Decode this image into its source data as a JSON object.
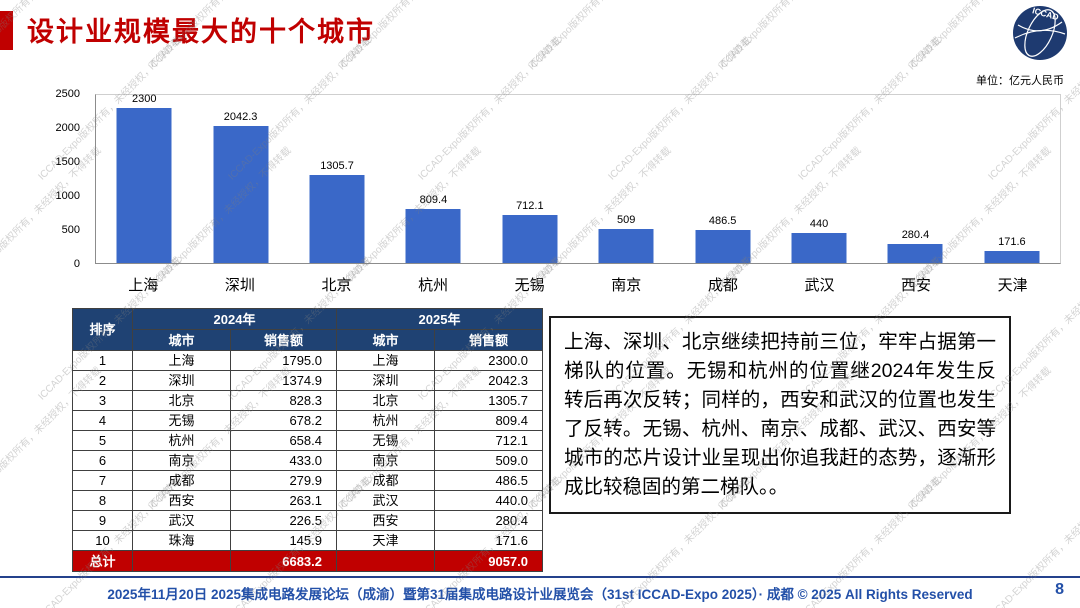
{
  "slide": {
    "title": "设计业规模最大的十个城市",
    "unit_label": "单位：亿元人民币",
    "logo_text": "ICCAD",
    "watermark": "ICCAD-Expo版权所有，未经授权，不得转载",
    "footer": "2025年11月20日 2025集成电路发展论坛（成渝）暨第31届集成电路设计业展览会（31st ICCAD-Expo 2025）· 成都 © 2025 All Rights Reserved",
    "page_number": "8"
  },
  "chart_data": {
    "type": "bar",
    "title": "设计业规模最大的十个城市",
    "unit": "亿元人民币",
    "categories": [
      "上海",
      "深圳",
      "北京",
      "杭州",
      "无锡",
      "南京",
      "成都",
      "武汉",
      "西安",
      "天津"
    ],
    "values": [
      2300,
      2042.3,
      1305.7,
      809.4,
      712.1,
      509,
      486.5,
      440,
      280.4,
      171.6
    ],
    "value_labels": [
      "2300",
      "2042.3",
      "1305.7",
      "809.4",
      "712.1",
      "509",
      "486.5",
      "440",
      "280.4",
      "171.6"
    ],
    "xlabel": "",
    "ylabel": "",
    "ylim": [
      0,
      2500
    ],
    "yticks": [
      2500,
      2000,
      1500,
      1000,
      500,
      0
    ],
    "grid": false,
    "legend": false,
    "bar_color": "#3A68C8"
  },
  "table": {
    "header_rank": "排序",
    "header_2024": "2024年",
    "header_2025": "2025年",
    "subheader_city": "城市",
    "subheader_sales": "销售额",
    "rows": [
      {
        "rank": "1",
        "city_2024": "上海",
        "sales_2024": "1795.0",
        "city_2025": "上海",
        "sales_2025": "2300.0"
      },
      {
        "rank": "2",
        "city_2024": "深圳",
        "sales_2024": "1374.9",
        "city_2025": "深圳",
        "sales_2025": "2042.3"
      },
      {
        "rank": "3",
        "city_2024": "北京",
        "sales_2024": "828.3",
        "city_2025": "北京",
        "sales_2025": "1305.7"
      },
      {
        "rank": "4",
        "city_2024": "无锡",
        "sales_2024": "678.2",
        "city_2025": "杭州",
        "sales_2025": "809.4"
      },
      {
        "rank": "5",
        "city_2024": "杭州",
        "sales_2024": "658.4",
        "city_2025": "无锡",
        "sales_2025": "712.1"
      },
      {
        "rank": "6",
        "city_2024": "南京",
        "sales_2024": "433.0",
        "city_2025": "南京",
        "sales_2025": "509.0"
      },
      {
        "rank": "7",
        "city_2024": "成都",
        "sales_2024": "279.9",
        "city_2025": "成都",
        "sales_2025": "486.5"
      },
      {
        "rank": "8",
        "city_2024": "西安",
        "sales_2024": "263.1",
        "city_2025": "武汉",
        "sales_2025": "440.0"
      },
      {
        "rank": "9",
        "city_2024": "武汉",
        "sales_2024": "226.5",
        "city_2025": "西安",
        "sales_2025": "280.4"
      },
      {
        "rank": "10",
        "city_2024": "珠海",
        "sales_2024": "145.9",
        "city_2025": "天津",
        "sales_2025": "171.6"
      }
    ],
    "total_label": "总计",
    "total_2024": "6683.2",
    "total_2025": "9057.0"
  },
  "commentary": "上海、深圳、北京继续把持前三位，牢牢占据第一梯队的位置。无锡和杭州的位置继2024年发生反转后再次反转；同样的，西安和武汉的位置也发生了反转。无锡、杭州、南京、成都、武汉、西安等城市的芯片设计业呈现出你追我赶的态势，逐渐形成比较稳固的第二梯队。。"
}
